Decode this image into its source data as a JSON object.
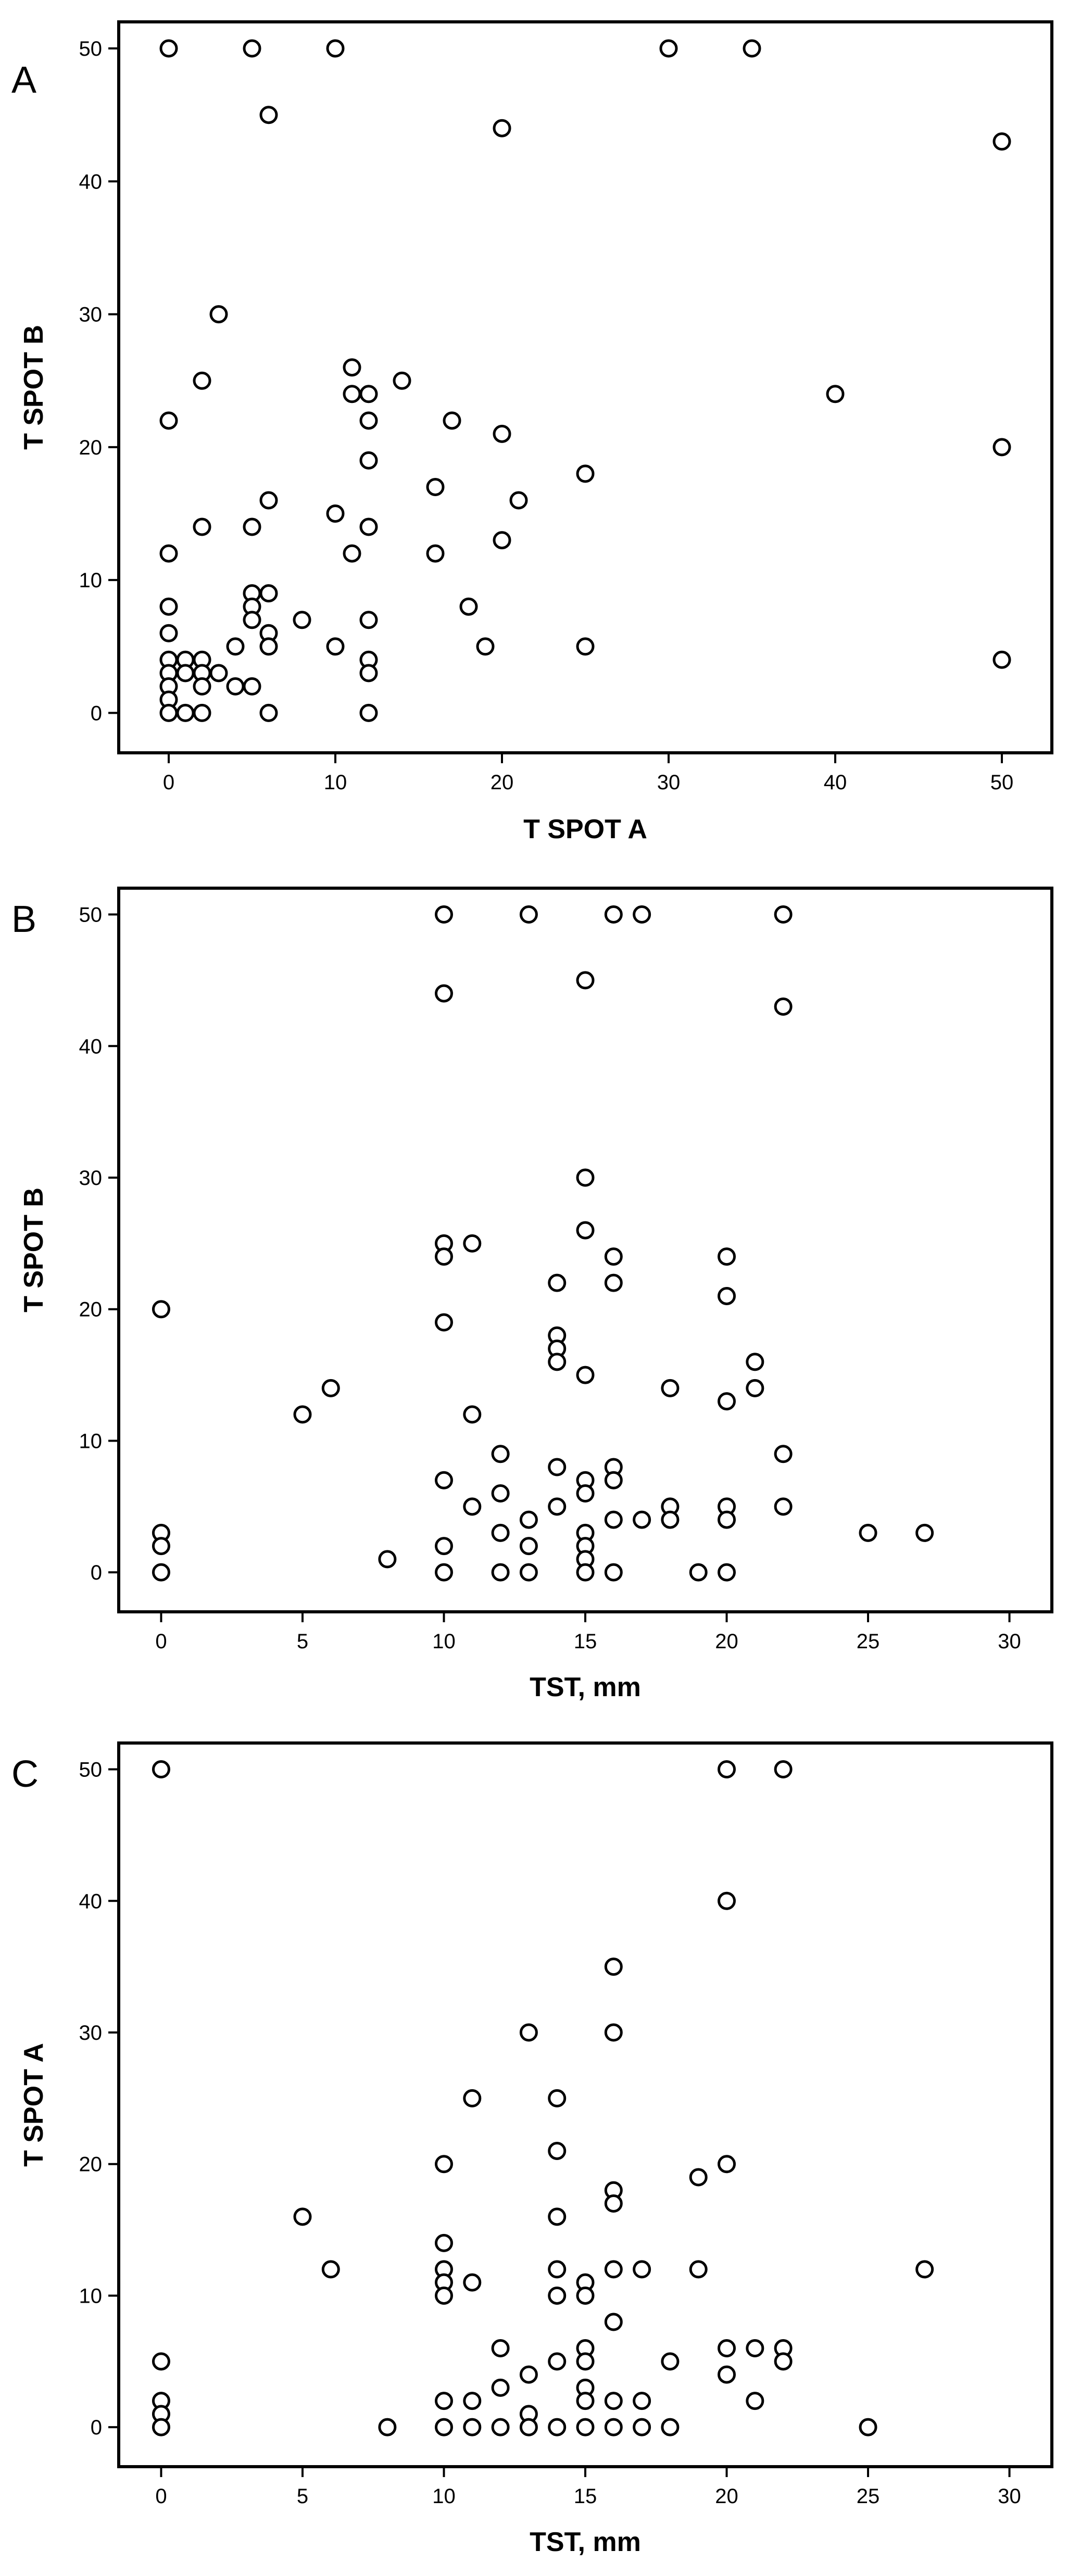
{
  "chart_data": [
    {
      "type": "scatter",
      "panel": "A",
      "xlabel": "T SPOT A",
      "ylabel": "T SPOT B",
      "xlim": [
        -3,
        53
      ],
      "ylim": [
        -3,
        52
      ],
      "xticks": [
        0,
        10,
        20,
        30,
        40,
        50
      ],
      "yticks": [
        0,
        10,
        20,
        30,
        40,
        50
      ],
      "points": [
        [
          0,
          50
        ],
        [
          5,
          50
        ],
        [
          10,
          50
        ],
        [
          30,
          50
        ],
        [
          35,
          50
        ],
        [
          6,
          45
        ],
        [
          20,
          44
        ],
        [
          50,
          43
        ],
        [
          3,
          30
        ],
        [
          2,
          25
        ],
        [
          0,
          22
        ],
        [
          11,
          26
        ],
        [
          11,
          24
        ],
        [
          12,
          24
        ],
        [
          14,
          25
        ],
        [
          12,
          22
        ],
        [
          17,
          22
        ],
        [
          20,
          21
        ],
        [
          40,
          24
        ],
        [
          50,
          20
        ],
        [
          12,
          19
        ],
        [
          16,
          17
        ],
        [
          25,
          18
        ],
        [
          6,
          16
        ],
        [
          10,
          15
        ],
        [
          21,
          16
        ],
        [
          2,
          14
        ],
        [
          5,
          14
        ],
        [
          12,
          14
        ],
        [
          20,
          13
        ],
        [
          0,
          12
        ],
        [
          11,
          12
        ],
        [
          16,
          12
        ],
        [
          5,
          9
        ],
        [
          6,
          9
        ],
        [
          0,
          8
        ],
        [
          5,
          8
        ],
        [
          5,
          7
        ],
        [
          8,
          7
        ],
        [
          12,
          7
        ],
        [
          18,
          8
        ],
        [
          0,
          6
        ],
        [
          6,
          6
        ],
        [
          4,
          5
        ],
        [
          6,
          5
        ],
        [
          10,
          5
        ],
        [
          19,
          5
        ],
        [
          25,
          5
        ],
        [
          0,
          4
        ],
        [
          1,
          4
        ],
        [
          2,
          4
        ],
        [
          12,
          4
        ],
        [
          50,
          4
        ],
        [
          0,
          3
        ],
        [
          1,
          3
        ],
        [
          2,
          3
        ],
        [
          3,
          3
        ],
        [
          12,
          3
        ],
        [
          0,
          2
        ],
        [
          2,
          2
        ],
        [
          4,
          2
        ],
        [
          5,
          2
        ],
        [
          0,
          1
        ],
        [
          0,
          0
        ],
        [
          1,
          0
        ],
        [
          2,
          0
        ],
        [
          6,
          0
        ],
        [
          12,
          0
        ]
      ]
    },
    {
      "type": "scatter",
      "panel": "B",
      "xlabel": "TST, mm",
      "ylabel": "T SPOT B",
      "xlim": [
        -1.5,
        31.5
      ],
      "ylim": [
        -3,
        52
      ],
      "xticks": [
        0,
        5,
        10,
        15,
        20,
        25,
        30
      ],
      "yticks": [
        0,
        10,
        20,
        30,
        40,
        50
      ],
      "points": [
        [
          10,
          50
        ],
        [
          13,
          50
        ],
        [
          16,
          50
        ],
        [
          17,
          50
        ],
        [
          22,
          50
        ],
        [
          15,
          45
        ],
        [
          10,
          44
        ],
        [
          22,
          43
        ],
        [
          15,
          30
        ],
        [
          15,
          26
        ],
        [
          10,
          25
        ],
        [
          10,
          24
        ],
        [
          11,
          25
        ],
        [
          16,
          24
        ],
        [
          20,
          24
        ],
        [
          14,
          22
        ],
        [
          16,
          22
        ],
        [
          20,
          21
        ],
        [
          0,
          20
        ],
        [
          10,
          19
        ],
        [
          14,
          18
        ],
        [
          14,
          17
        ],
        [
          14,
          16
        ],
        [
          21,
          16
        ],
        [
          15,
          15
        ],
        [
          6,
          14
        ],
        [
          18,
          14
        ],
        [
          21,
          14
        ],
        [
          20,
          13
        ],
        [
          5,
          12
        ],
        [
          11,
          12
        ],
        [
          12,
          9
        ],
        [
          22,
          9
        ],
        [
          14,
          8
        ],
        [
          16,
          8
        ],
        [
          16,
          7
        ],
        [
          10,
          7
        ],
        [
          15,
          7
        ],
        [
          12,
          6
        ],
        [
          15,
          6
        ],
        [
          11,
          5
        ],
        [
          14,
          5
        ],
        [
          18,
          5
        ],
        [
          20,
          5
        ],
        [
          22,
          5
        ],
        [
          13,
          4
        ],
        [
          16,
          4
        ],
        [
          17,
          4
        ],
        [
          18,
          4
        ],
        [
          20,
          4
        ],
        [
          0,
          3
        ],
        [
          12,
          3
        ],
        [
          15,
          3
        ],
        [
          25,
          3
        ],
        [
          27,
          3
        ],
        [
          0,
          2
        ],
        [
          10,
          2
        ],
        [
          13,
          2
        ],
        [
          15,
          2
        ],
        [
          8,
          1
        ],
        [
          15,
          1
        ],
        [
          0,
          0
        ],
        [
          10,
          0
        ],
        [
          12,
          0
        ],
        [
          13,
          0
        ],
        [
          15,
          0
        ],
        [
          16,
          0
        ],
        [
          19,
          0
        ],
        [
          20,
          0
        ]
      ]
    },
    {
      "type": "scatter",
      "panel": "C",
      "xlabel": "TST, mm",
      "ylabel": "T SPOT A",
      "xlim": [
        -1.5,
        31.5
      ],
      "ylim": [
        -3,
        52
      ],
      "xticks": [
        0,
        5,
        10,
        15,
        20,
        25,
        30
      ],
      "yticks": [
        0,
        10,
        20,
        30,
        40,
        50
      ],
      "points": [
        [
          0,
          50
        ],
        [
          20,
          50
        ],
        [
          22,
          50
        ],
        [
          20,
          40
        ],
        [
          16,
          35
        ],
        [
          13,
          30
        ],
        [
          16,
          30
        ],
        [
          11,
          25
        ],
        [
          14,
          25
        ],
        [
          14,
          21
        ],
        [
          10,
          20
        ],
        [
          20,
          20
        ],
        [
          16,
          18
        ],
        [
          16,
          17
        ],
        [
          5,
          16
        ],
        [
          14,
          16
        ],
        [
          19,
          19
        ],
        [
          10,
          14
        ],
        [
          6,
          12
        ],
        [
          10,
          12
        ],
        [
          14,
          12
        ],
        [
          16,
          12
        ],
        [
          17,
          12
        ],
        [
          19,
          12
        ],
        [
          27,
          12
        ],
        [
          10,
          11
        ],
        [
          11,
          11
        ],
        [
          15,
          11
        ],
        [
          10,
          10
        ],
        [
          14,
          10
        ],
        [
          15,
          10
        ],
        [
          16,
          8
        ],
        [
          12,
          6
        ],
        [
          20,
          6
        ],
        [
          21,
          6
        ],
        [
          22,
          6
        ],
        [
          15,
          6
        ],
        [
          0,
          5
        ],
        [
          14,
          5
        ],
        [
          15,
          5
        ],
        [
          18,
          5
        ],
        [
          22,
          5
        ],
        [
          13,
          4
        ],
        [
          20,
          4
        ],
        [
          12,
          3
        ],
        [
          15,
          3
        ],
        [
          0,
          2
        ],
        [
          10,
          2
        ],
        [
          11,
          2
        ],
        [
          15,
          2
        ],
        [
          16,
          2
        ],
        [
          17,
          2
        ],
        [
          21,
          2
        ],
        [
          0,
          1
        ],
        [
          13,
          1
        ],
        [
          0,
          0
        ],
        [
          8,
          0
        ],
        [
          10,
          0
        ],
        [
          11,
          0
        ],
        [
          12,
          0
        ],
        [
          13,
          0
        ],
        [
          14,
          0
        ],
        [
          15,
          0
        ],
        [
          16,
          0
        ],
        [
          17,
          0
        ],
        [
          18,
          0
        ],
        [
          25,
          0
        ]
      ]
    }
  ]
}
